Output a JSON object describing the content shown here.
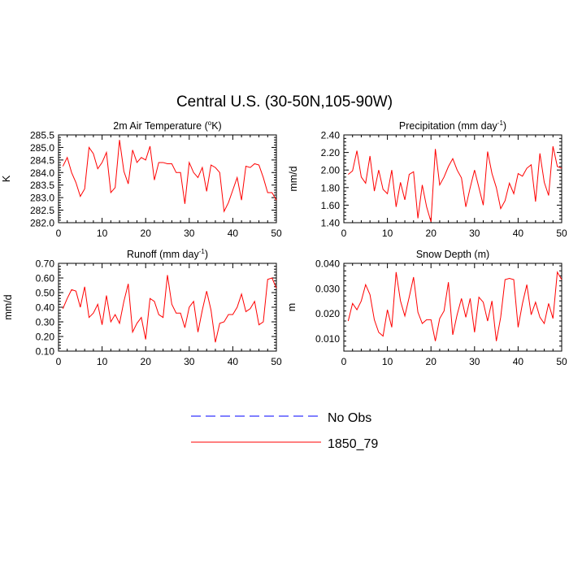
{
  "figure": {
    "title": "Central U.S. (30-50N,105-90W)"
  },
  "colors": {
    "model": "#ff0000",
    "obs": "#0000ff",
    "axes": "#000000"
  },
  "legend": {
    "obs_label": "No Obs",
    "model_label": "1850_79"
  },
  "chart_data": [
    {
      "type": "line",
      "title": "2m Air Temperature (°K)",
      "title_main": "2m Air Temperature (",
      "title_sup": "o",
      "title_tail": "K)",
      "ylabel": "K",
      "xlabel": "",
      "xlim": [
        0,
        50
      ],
      "ylim": [
        282.0,
        285.5
      ],
      "xticks": [
        "0",
        "10",
        "20",
        "30",
        "40",
        "50"
      ],
      "yticks": [
        "282.0",
        "282.5",
        "283.0",
        "283.5",
        "284.0",
        "284.5",
        "285.0",
        "285.5"
      ],
      "series": [
        {
          "name": "1850_79",
          "x": [
            1,
            2,
            3,
            4,
            5,
            6,
            7,
            8,
            9,
            10,
            11,
            12,
            13,
            14,
            15,
            16,
            17,
            18,
            19,
            20,
            21,
            22,
            23,
            24,
            25,
            26,
            27,
            28,
            29,
            30,
            31,
            32,
            33,
            34,
            35,
            36,
            37,
            38,
            39,
            40,
            41,
            42,
            43,
            44,
            45,
            46,
            47,
            48,
            49,
            50
          ],
          "values": [
            284.25,
            284.6,
            284.0,
            283.6,
            283.05,
            283.35,
            285.0,
            284.75,
            284.15,
            284.4,
            284.8,
            283.2,
            283.4,
            285.3,
            284.05,
            283.55,
            284.9,
            284.4,
            284.6,
            284.5,
            285.05,
            283.7,
            284.4,
            284.4,
            284.35,
            284.35,
            284.0,
            284.0,
            282.75,
            284.4,
            284.0,
            283.8,
            284.2,
            283.25,
            284.3,
            284.2,
            284.0,
            282.45,
            282.8,
            283.3,
            283.8,
            282.9,
            284.25,
            284.2,
            284.35,
            284.3,
            283.8,
            283.2,
            283.2,
            282.9
          ]
        }
      ]
    },
    {
      "type": "line",
      "title": "Precipitation (mm day-1)",
      "title_main": "Precipitation (mm day",
      "title_sup": "-1",
      "title_tail": ")",
      "ylabel": "mm/d",
      "xlabel": "",
      "xlim": [
        0,
        50
      ],
      "ylim": [
        1.4,
        2.4
      ],
      "xticks": [
        "0",
        "10",
        "20",
        "30",
        "40",
        "50"
      ],
      "yticks": [
        "1.40",
        "1.60",
        "1.80",
        "2.00",
        "2.20",
        "2.40"
      ],
      "series": [
        {
          "name": "1850_79",
          "x": [
            1,
            2,
            3,
            4,
            5,
            6,
            7,
            8,
            9,
            10,
            11,
            12,
            13,
            14,
            15,
            16,
            17,
            18,
            19,
            20,
            21,
            22,
            23,
            24,
            25,
            26,
            27,
            28,
            29,
            30,
            31,
            32,
            33,
            34,
            35,
            36,
            37,
            38,
            39,
            40,
            41,
            42,
            43,
            44,
            45,
            46,
            47,
            48,
            49,
            50
          ],
          "values": [
            1.95,
            1.99,
            2.22,
            1.92,
            1.85,
            2.16,
            1.76,
            2.0,
            1.78,
            1.73,
            2.0,
            1.58,
            1.86,
            1.66,
            1.95,
            1.98,
            1.45,
            1.83,
            1.58,
            1.41,
            2.24,
            1.83,
            1.92,
            2.04,
            2.13,
            2.0,
            1.91,
            1.58,
            1.8,
            2.0,
            1.8,
            1.6,
            2.21,
            1.96,
            1.8,
            1.56,
            1.65,
            1.85,
            1.73,
            1.96,
            1.93,
            2.02,
            2.06,
            1.64,
            2.19,
            1.86,
            1.71,
            2.27,
            2.04,
            2.02
          ]
        }
      ]
    },
    {
      "type": "line",
      "title": "Runoff (mm day-1)",
      "title_main": "Runoff (mm day",
      "title_sup": "-1",
      "title_tail": ")",
      "ylabel": "mm/d",
      "xlabel": "",
      "xlim": [
        0,
        50
      ],
      "ylim": [
        0.1,
        0.7
      ],
      "xticks": [
        "0",
        "10",
        "20",
        "30",
        "40",
        "50"
      ],
      "yticks": [
        "0.10",
        "0.20",
        "0.30",
        "0.40",
        "0.50",
        "0.60",
        "0.70"
      ],
      "series": [
        {
          "name": "1850_79",
          "x": [
            1,
            2,
            3,
            4,
            5,
            6,
            7,
            8,
            9,
            10,
            11,
            12,
            13,
            14,
            15,
            16,
            17,
            18,
            19,
            20,
            21,
            22,
            23,
            24,
            25,
            26,
            27,
            28,
            29,
            30,
            31,
            32,
            33,
            34,
            35,
            36,
            37,
            38,
            39,
            40,
            41,
            42,
            43,
            44,
            45,
            46,
            47,
            48,
            49,
            50
          ],
          "values": [
            0.39,
            0.46,
            0.52,
            0.51,
            0.4,
            0.54,
            0.33,
            0.36,
            0.42,
            0.28,
            0.48,
            0.3,
            0.35,
            0.29,
            0.44,
            0.56,
            0.23,
            0.29,
            0.33,
            0.18,
            0.46,
            0.44,
            0.35,
            0.33,
            0.62,
            0.42,
            0.36,
            0.36,
            0.26,
            0.4,
            0.44,
            0.23,
            0.38,
            0.51,
            0.38,
            0.16,
            0.29,
            0.3,
            0.35,
            0.35,
            0.4,
            0.49,
            0.37,
            0.39,
            0.44,
            0.28,
            0.3,
            0.59,
            0.6,
            0.53
          ]
        }
      ]
    },
    {
      "type": "line",
      "title": "Snow Depth (m)",
      "title_main": "Snow Depth (m)",
      "title_sup": "",
      "title_tail": "",
      "ylabel": "m",
      "xlabel": "",
      "xlim": [
        0,
        50
      ],
      "ylim": [
        0.005,
        0.04
      ],
      "xticks": [
        "0",
        "10",
        "20",
        "30",
        "40",
        "50"
      ],
      "yticks": [
        "0.010",
        "0.020",
        "0.030",
        "0.040"
      ],
      "yticks_values": [
        0.01,
        0.02,
        0.03,
        0.04
      ],
      "series": [
        {
          "name": "1850_79",
          "x": [
            1,
            2,
            3,
            4,
            5,
            6,
            7,
            8,
            9,
            10,
            11,
            12,
            13,
            14,
            15,
            16,
            17,
            18,
            19,
            20,
            21,
            22,
            23,
            24,
            25,
            26,
            27,
            28,
            29,
            30,
            31,
            32,
            33,
            34,
            35,
            36,
            37,
            38,
            39,
            40,
            41,
            42,
            43,
            44,
            45,
            46,
            47,
            48,
            49,
            50
          ],
          "values": [
            0.017,
            0.024,
            0.0215,
            0.025,
            0.0315,
            0.0275,
            0.0175,
            0.0125,
            0.011,
            0.0215,
            0.0145,
            0.0365,
            0.025,
            0.019,
            0.0265,
            0.0345,
            0.0205,
            0.016,
            0.0175,
            0.0175,
            0.009,
            0.018,
            0.021,
            0.0325,
            0.0115,
            0.0195,
            0.026,
            0.0185,
            0.026,
            0.0125,
            0.0265,
            0.0245,
            0.017,
            0.025,
            0.009,
            0.0185,
            0.0335,
            0.034,
            0.0335,
            0.0145,
            0.024,
            0.0315,
            0.0195,
            0.0245,
            0.0185,
            0.016,
            0.024,
            0.018,
            0.0365,
            0.0335
          ]
        }
      ]
    }
  ]
}
